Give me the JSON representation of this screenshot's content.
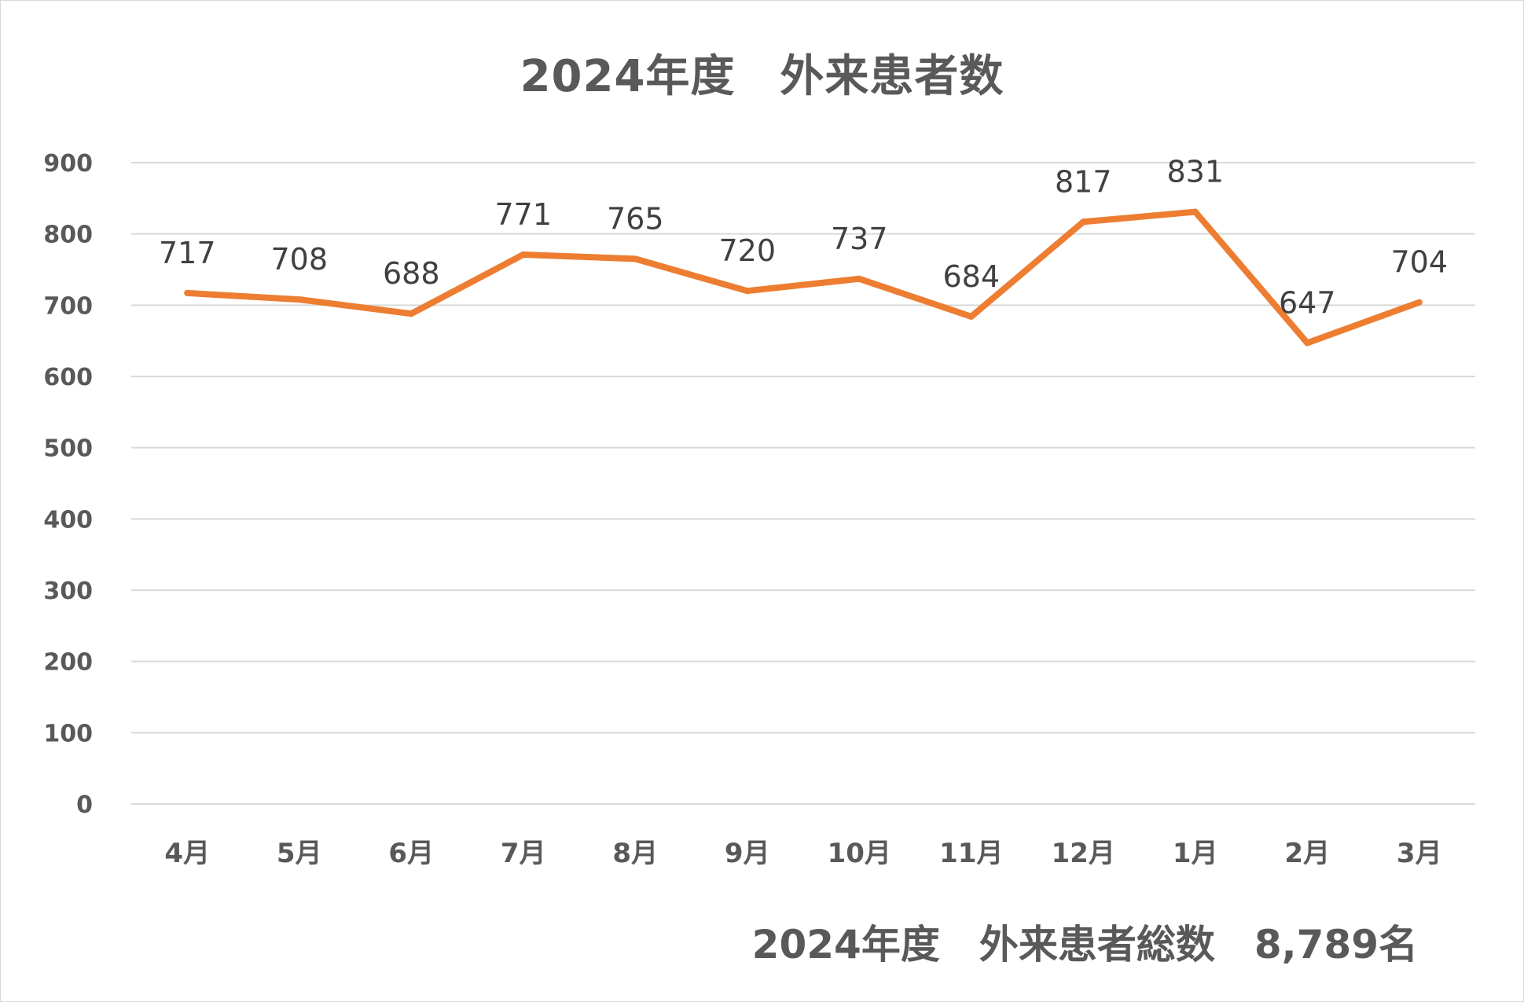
{
  "chart_data": {
    "type": "line",
    "title": "2024年度　外来患者数",
    "categories": [
      "4月",
      "5月",
      "6月",
      "7月",
      "8月",
      "9月",
      "10月",
      "11月",
      "12月",
      "1月",
      "2月",
      "3月"
    ],
    "series": [
      {
        "values": [
          717,
          708,
          688,
          771,
          765,
          720,
          737,
          684,
          817,
          831,
          647,
          704
        ]
      }
    ],
    "ylim": [
      0,
      900
    ],
    "yticks": [
      0,
      100,
      200,
      300,
      400,
      500,
      600,
      700,
      800,
      900
    ],
    "grid": true,
    "data_labels": true,
    "line_color": "#ED7D31",
    "grid_color": "#D9D9D9"
  },
  "annotation": {
    "total_text": "2024年度　外来患者総数　8,789名"
  }
}
